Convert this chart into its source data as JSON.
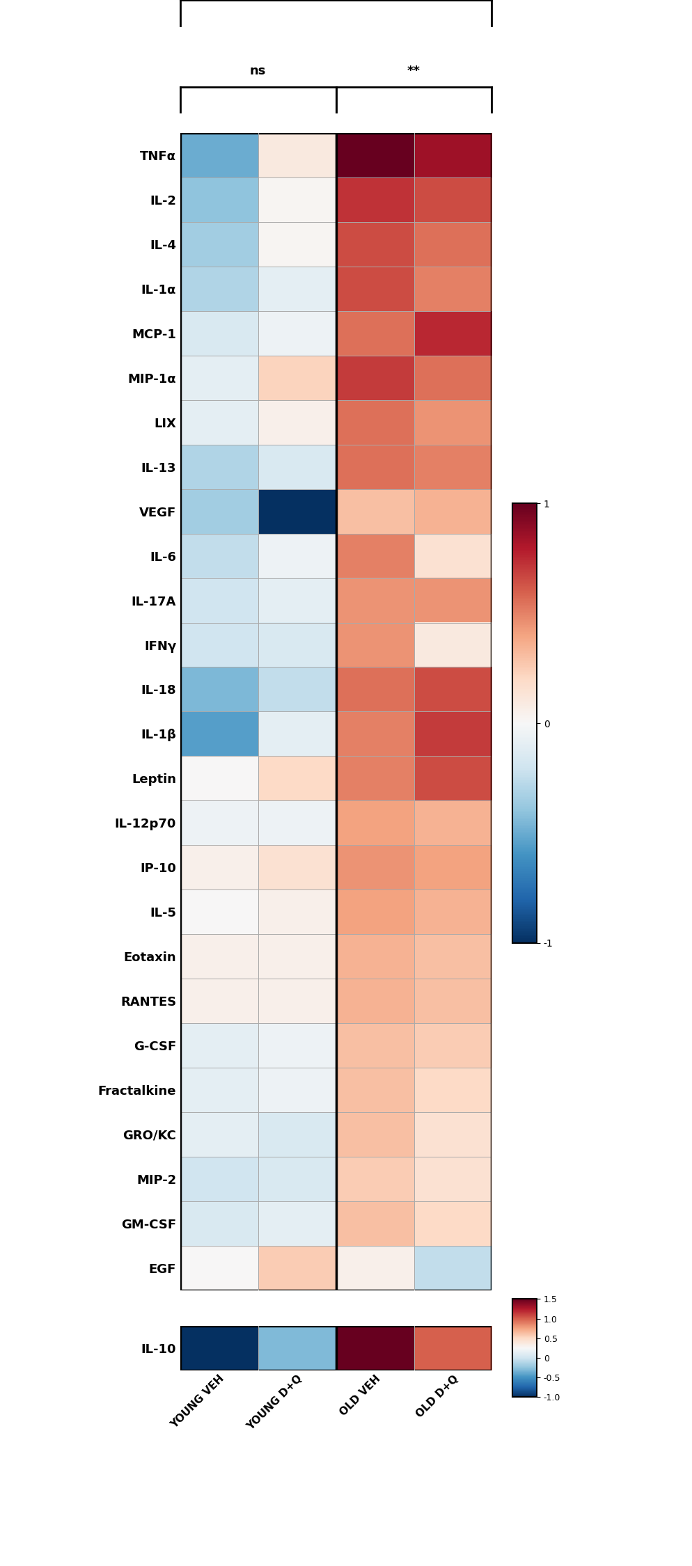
{
  "cytokines": [
    "TNFα",
    "IL-2",
    "IL-4",
    "IL-1α",
    "MCP-1",
    "MIP-1α",
    "LIX",
    "IL-13",
    "VEGF",
    "IL-6",
    "IL-17A",
    "IFNγ",
    "IL-18",
    "IL-1β",
    "Leptin",
    "IL-12p70",
    "IP-10",
    "IL-5",
    "Eotaxin",
    "RANTES",
    "G-CSF",
    "Fractalkine",
    "GRO/KC",
    "MIP-2",
    "GM-CSF",
    "EGF"
  ],
  "columns": [
    "YOUNG VEH",
    "YOUNG D+Q",
    "OLD VEH",
    "OLD D+Q"
  ],
  "data": [
    [
      -0.5,
      0.1,
      1.0,
      0.85
    ],
    [
      -0.4,
      0.02,
      0.72,
      0.65
    ],
    [
      -0.35,
      0.02,
      0.65,
      0.55
    ],
    [
      -0.3,
      -0.1,
      0.65,
      0.5
    ],
    [
      -0.15,
      -0.05,
      0.55,
      0.75
    ],
    [
      -0.1,
      0.22,
      0.7,
      0.55
    ],
    [
      -0.1,
      0.05,
      0.55,
      0.45
    ],
    [
      -0.3,
      -0.15,
      0.55,
      0.5
    ],
    [
      -0.35,
      -1.0,
      0.3,
      0.35
    ],
    [
      -0.25,
      -0.05,
      0.5,
      0.15
    ],
    [
      -0.2,
      -0.1,
      0.45,
      0.45
    ],
    [
      -0.2,
      -0.15,
      0.45,
      0.1
    ],
    [
      -0.45,
      -0.25,
      0.55,
      0.65
    ],
    [
      -0.55,
      -0.1,
      0.5,
      0.7
    ],
    [
      0.0,
      0.2,
      0.5,
      0.65
    ],
    [
      -0.05,
      -0.05,
      0.4,
      0.35
    ],
    [
      0.05,
      0.15,
      0.45,
      0.4
    ],
    [
      0.0,
      0.05,
      0.4,
      0.35
    ],
    [
      0.05,
      0.05,
      0.35,
      0.3
    ],
    [
      0.05,
      0.05,
      0.35,
      0.3
    ],
    [
      -0.1,
      -0.05,
      0.3,
      0.25
    ],
    [
      -0.1,
      -0.05,
      0.3,
      0.2
    ],
    [
      -0.1,
      -0.15,
      0.3,
      0.15
    ],
    [
      -0.2,
      -0.15,
      0.25,
      0.15
    ],
    [
      -0.15,
      -0.1,
      0.3,
      0.2
    ],
    [
      0.0,
      0.25,
      0.05,
      -0.25
    ]
  ],
  "il10_data": [
    -1.0,
    -0.3,
    1.5,
    1.0
  ],
  "vmin": -1.0,
  "vmax": 1.0,
  "il10_vmin": -1.0,
  "il10_vmax": 1.5,
  "grid_color": "#aaaaaa",
  "border_color": "black",
  "label_fontsize": 13,
  "tick_fontsize": 11,
  "bracket_fontsize": 14,
  "inner_bracket_fontsize": 13
}
